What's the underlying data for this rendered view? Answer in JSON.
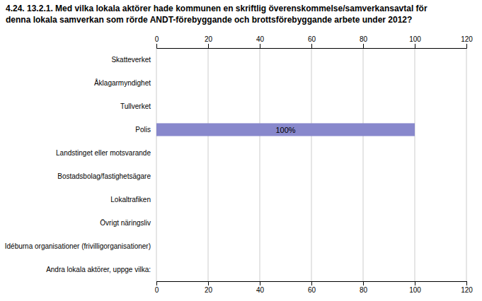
{
  "chart_data": {
    "type": "bar",
    "orientation": "horizontal",
    "title": "4.24. 13.2.1. Med vilka lokala aktörer hade kommunen en skriftlig överenskommelse/samverkansavtal för",
    "subtitle": "denna lokala samverkan som rörde ANDT-förebyggande och brottsförebyggande arbete under 2012?",
    "categories": [
      "Skatteverket",
      "Åklagarmyndighet",
      "Tullverket",
      "Polis",
      "Landstinget eller motsvarande",
      "Bostadsbolag/fastighetsägare",
      "Lokaltrafiken",
      "Övrigt näringsliv",
      "Idéburna organisationer (frivilligorganisationer)",
      "Andra lokala aktörer, uppge vilka:"
    ],
    "values": [
      0,
      0,
      0,
      100,
      0,
      0,
      0,
      0,
      0,
      0
    ],
    "colors": [
      "#c8cce8",
      "#c8cce8",
      "#c8cce8",
      "#8888cc",
      "#c8cce8",
      "#c8cce8",
      "#c8cce8",
      "#c8cce8",
      "#c8cce8",
      "#c8cce8"
    ],
    "xlim": [
      0,
      120
    ],
    "xticks": [
      0,
      20,
      40,
      60,
      80,
      100,
      120
    ],
    "grid": true,
    "data_labels": true,
    "value_labels": [
      null,
      null,
      null,
      "100%",
      null,
      null,
      null,
      null,
      null,
      null
    ]
  }
}
